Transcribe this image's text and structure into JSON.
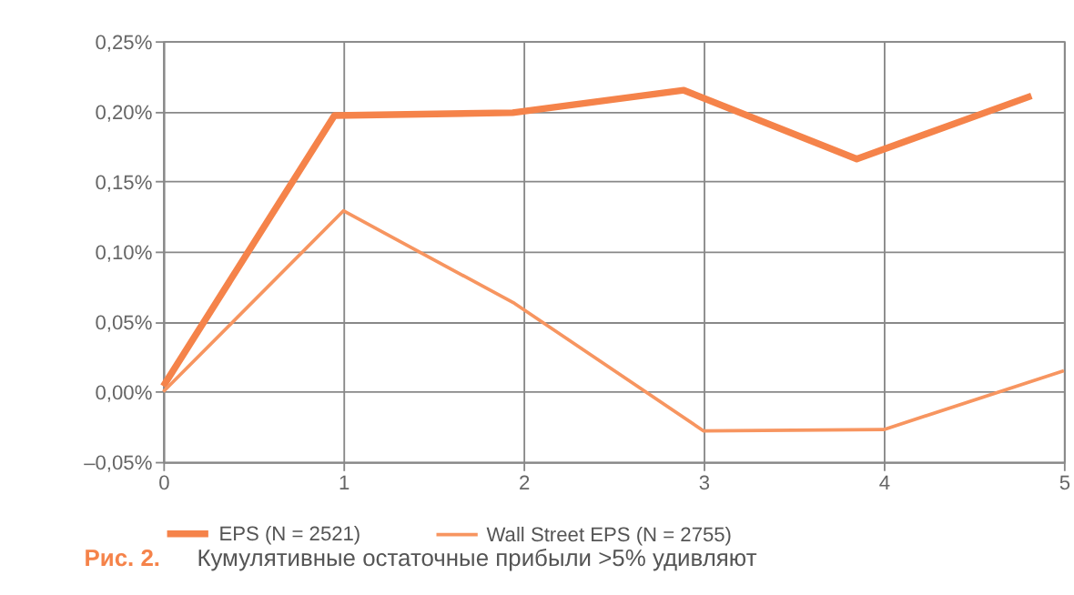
{
  "chart_data": {
    "type": "line",
    "title": "Кумулятивные остаточные прибыли >5% удивляют",
    "annotations": [
      "Рис. 2."
    ],
    "series": [
      {
        "name": "EPS (N = 2521)",
        "color": "#f5834a",
        "x": [
          0,
          0.95,
          1.94,
          2.89,
          3.85,
          4.82
        ],
        "values": [
          0.004,
          0.197,
          0.199,
          0.215,
          0.166,
          0.211
        ]
      },
      {
        "name": "Wall Street EPS (N = 2755)",
        "color": "#f79560",
        "x": [
          0,
          1,
          1.95,
          3,
          4,
          5
        ],
        "values": [
          0.0,
          0.129,
          0.063,
          -0.028,
          -0.027,
          0.015
        ]
      }
    ],
    "xlim": [
      0,
      5
    ],
    "xticks": [
      0,
      1,
      2,
      3,
      4,
      5
    ],
    "ylim": [
      -0.05,
      0.25
    ],
    "yticks": [
      {
        "value": -0.05,
        "label": "–0,05%"
      },
      {
        "value": 0,
        "label": "0,00%"
      },
      {
        "value": 0.05,
        "label": "0,05%"
      },
      {
        "value": 0.1,
        "label": "0,10%"
      },
      {
        "value": 0.15,
        "label": "0,15%"
      },
      {
        "value": 0.2,
        "label": "0,20%"
      },
      {
        "value": 0.25,
        "label": "0,25%"
      }
    ],
    "grid": true,
    "legend": "bottom",
    "marker": "none",
    "line_style": "solid"
  }
}
